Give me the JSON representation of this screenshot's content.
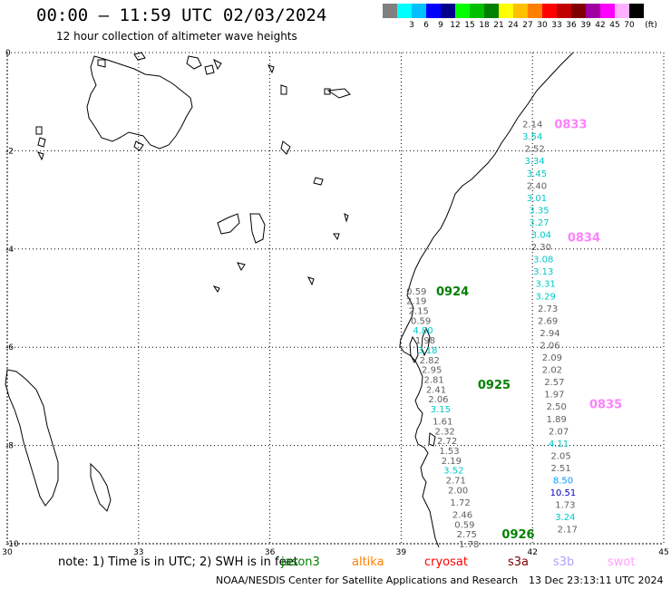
{
  "title": "00:00 – 11:59 UTC 02/03/2024",
  "subtitle": "12 hour collection of altimeter wave heights",
  "legend": {
    "unit": "(ft)",
    "swatches": [
      {
        "color": "#808080",
        "label": ""
      },
      {
        "color": "#00ffff",
        "label": "3"
      },
      {
        "color": "#00c0ff",
        "label": "6"
      },
      {
        "color": "#0000ff",
        "label": "9"
      },
      {
        "color": "#00008b",
        "label": "12"
      },
      {
        "color": "#00ff00",
        "label": "15"
      },
      {
        "color": "#00c000",
        "label": "18"
      },
      {
        "color": "#008000",
        "label": "21"
      },
      {
        "color": "#ffff00",
        "label": "24"
      },
      {
        "color": "#ffc000",
        "label": "27"
      },
      {
        "color": "#ff8000",
        "label": "30"
      },
      {
        "color": "#ff0000",
        "label": "33"
      },
      {
        "color": "#c00000",
        "label": "36"
      },
      {
        "color": "#800000",
        "label": "39"
      },
      {
        "color": "#a000a0",
        "label": "42"
      },
      {
        "color": "#ff00ff",
        "label": "45"
      },
      {
        "color": "#ffb0ff",
        "label": "70"
      },
      {
        "color": "#000000",
        "label": ""
      }
    ]
  },
  "axes": {
    "lon_ticks": [
      "30",
      "33",
      "36",
      "39",
      "42",
      "45"
    ],
    "lat_ticks": [
      "0",
      "-2",
      "-4",
      "-6",
      "-8",
      "-10"
    ],
    "lon_range": [
      30,
      45
    ],
    "lat_range": [
      0,
      -10
    ]
  },
  "tracks": [
    {
      "time_label": "0833",
      "label_color": "#ff80ff",
      "label_lon": 42.5,
      "label_lat": -1.45,
      "points": [
        {
          "lon": 42.0,
          "lat": -1.45,
          "value": "2.14",
          "color": "#606060"
        },
        {
          "lon": 42.0,
          "lat": -1.7,
          "value": "3.54",
          "color": "#00c8c8"
        },
        {
          "lon": 42.05,
          "lat": -1.95,
          "value": "2.52",
          "color": "#606060"
        },
        {
          "lon": 42.05,
          "lat": -2.2,
          "value": "3.34",
          "color": "#00c8c8"
        },
        {
          "lon": 42.1,
          "lat": -2.45,
          "value": "3.45",
          "color": "#00c8c8"
        },
        {
          "lon": 42.1,
          "lat": -2.7,
          "value": "2.40",
          "color": "#606060"
        },
        {
          "lon": 42.1,
          "lat": -2.95,
          "value": "3.01",
          "color": "#00c8c8"
        },
        {
          "lon": 42.15,
          "lat": -3.2,
          "value": "3.35",
          "color": "#00c8c8"
        },
        {
          "lon": 42.15,
          "lat": -3.45,
          "value": "3.27",
          "color": "#00c8c8"
        },
        {
          "lon": 42.2,
          "lat": -3.7,
          "value": "3.04",
          "color": "#00c8c8"
        },
        {
          "lon": 42.2,
          "lat": -3.95,
          "value": "2.30",
          "color": "#606060"
        }
      ]
    },
    {
      "time_label": "0834",
      "label_color": "#ff80ff",
      "label_lon": 42.8,
      "label_lat": -3.75,
      "points": [
        {
          "lon": 42.25,
          "lat": -4.2,
          "value": "3.08",
          "color": "#00c8c8"
        },
        {
          "lon": 42.25,
          "lat": -4.45,
          "value": "3.13",
          "color": "#00c8c8"
        },
        {
          "lon": 42.3,
          "lat": -4.7,
          "value": "3.31",
          "color": "#00c8c8"
        },
        {
          "lon": 42.3,
          "lat": -4.95,
          "value": "3.29",
          "color": "#00c8c8"
        },
        {
          "lon": 42.35,
          "lat": -5.2,
          "value": "2.73",
          "color": "#606060"
        },
        {
          "lon": 42.35,
          "lat": -5.45,
          "value": "2.69",
          "color": "#606060"
        },
        {
          "lon": 42.4,
          "lat": -5.7,
          "value": "2.94",
          "color": "#606060"
        },
        {
          "lon": 42.4,
          "lat": -5.95,
          "value": "2.06",
          "color": "#606060"
        },
        {
          "lon": 42.45,
          "lat": -6.2,
          "value": "2.09",
          "color": "#606060"
        },
        {
          "lon": 42.45,
          "lat": -6.45,
          "value": "2.02",
          "color": "#606060"
        },
        {
          "lon": 42.5,
          "lat": -6.7,
          "value": "2.57",
          "color": "#606060"
        },
        {
          "lon": 42.5,
          "lat": -6.95,
          "value": "1.97",
          "color": "#606060"
        }
      ]
    },
    {
      "time_label": "0835",
      "label_color": "#ff80ff",
      "label_lon": 43.3,
      "label_lat": -7.15,
      "points": [
        {
          "lon": 42.55,
          "lat": -7.2,
          "value": "2.50",
          "color": "#606060"
        },
        {
          "lon": 42.55,
          "lat": -7.45,
          "value": "1.89",
          "color": "#606060"
        },
        {
          "lon": 42.6,
          "lat": -7.7,
          "value": "2.07",
          "color": "#606060"
        },
        {
          "lon": 42.6,
          "lat": -7.95,
          "value": "4.11",
          "color": "#00c8c8"
        },
        {
          "lon": 42.65,
          "lat": -8.2,
          "value": "2.05",
          "color": "#606060"
        },
        {
          "lon": 42.65,
          "lat": -8.45,
          "value": "2.51",
          "color": "#606060"
        },
        {
          "lon": 42.7,
          "lat": -8.7,
          "value": "8.50",
          "color": "#00a0ff"
        },
        {
          "lon": 42.7,
          "lat": -8.95,
          "value": "10.51",
          "color": "#0000c0"
        },
        {
          "lon": 42.75,
          "lat": -9.2,
          "value": "1.73",
          "color": "#606060"
        },
        {
          "lon": 42.75,
          "lat": -9.45,
          "value": "3.24",
          "color": "#00c8c8"
        },
        {
          "lon": 42.8,
          "lat": -9.7,
          "value": "2.17",
          "color": "#606060"
        }
      ]
    },
    {
      "time_label": "0924",
      "label_color": "#008000",
      "label_lon": 39.8,
      "label_lat": -4.85,
      "points": [
        {
          "lon": 39.35,
          "lat": -4.85,
          "value": "0.59",
          "color": "#606060"
        },
        {
          "lon": 39.35,
          "lat": -5.05,
          "value": "2.19",
          "color": "#606060"
        },
        {
          "lon": 39.4,
          "lat": -5.25,
          "value": "2.15",
          "color": "#606060"
        },
        {
          "lon": 39.45,
          "lat": -5.45,
          "value": "0.59",
          "color": "#606060"
        },
        {
          "lon": 39.5,
          "lat": -5.65,
          "value": "4.80",
          "color": "#00c8c8"
        },
        {
          "lon": 39.55,
          "lat": -5.85,
          "value": "1.98",
          "color": "#606060"
        },
        {
          "lon": 39.6,
          "lat": -6.05,
          "value": "3.18",
          "color": "#00c8c8"
        },
        {
          "lon": 39.65,
          "lat": -6.25,
          "value": "2.82",
          "color": "#606060"
        },
        {
          "lon": 39.7,
          "lat": -6.45,
          "value": "2.95",
          "color": "#606060"
        },
        {
          "lon": 39.75,
          "lat": -6.65,
          "value": "2.81",
          "color": "#606060"
        },
        {
          "lon": 39.8,
          "lat": -6.85,
          "value": "2.41",
          "color": "#606060"
        },
        {
          "lon": 39.85,
          "lat": -7.05,
          "value": "2.06",
          "color": "#606060"
        },
        {
          "lon": 39.9,
          "lat": -7.25,
          "value": "3.15",
          "color": "#00c8c8"
        }
      ]
    },
    {
      "time_label": "0925",
      "label_color": "#008000",
      "label_lon": 40.75,
      "label_lat": -6.75,
      "points": [
        {
          "lon": 39.95,
          "lat": -7.5,
          "value": "1.61",
          "color": "#606060"
        },
        {
          "lon": 40.0,
          "lat": -7.7,
          "value": "2.32",
          "color": "#606060"
        },
        {
          "lon": 40.05,
          "lat": -7.9,
          "value": "2.72",
          "color": "#606060"
        },
        {
          "lon": 40.1,
          "lat": -8.1,
          "value": "1.53",
          "color": "#606060"
        },
        {
          "lon": 40.15,
          "lat": -8.3,
          "value": "2.19",
          "color": "#606060"
        },
        {
          "lon": 40.2,
          "lat": -8.5,
          "value": "3.52",
          "color": "#00c8c8"
        },
        {
          "lon": 40.25,
          "lat": -8.7,
          "value": "2.71",
          "color": "#606060"
        },
        {
          "lon": 40.3,
          "lat": -8.9,
          "value": "2.00",
          "color": "#606060"
        },
        {
          "lon": 40.35,
          "lat": -9.15,
          "value": "1.72",
          "color": "#606060"
        },
        {
          "lon": 40.4,
          "lat": -9.4,
          "value": "2.46",
          "color": "#606060"
        },
        {
          "lon": 40.45,
          "lat": -9.6,
          "value": "0.59",
          "color": "#606060"
        }
      ]
    },
    {
      "time_label": "0926",
      "label_color": "#008000",
      "label_lon": 41.3,
      "label_lat": -9.8,
      "points": [
        {
          "lon": 40.5,
          "lat": -9.8,
          "value": "2.75",
          "color": "#606060"
        },
        {
          "lon": 40.55,
          "lat": -10.0,
          "value": "1.78",
          "color": "#606060"
        }
      ]
    }
  ],
  "note": {
    "prefix": "note:  1) Time is in UTC;  2) SWH is in feet",
    "sats": [
      {
        "name": "jason3",
        "color": "#008000"
      },
      {
        "name": "altika",
        "color": "#ff8000"
      },
      {
        "name": "cryosat",
        "color": "#ff0000"
      },
      {
        "name": "s3a",
        "color": "#800000"
      },
      {
        "name": "s3b",
        "color": "#b0a0ff"
      },
      {
        "name": "swot",
        "color": "#ffa0ff"
      }
    ]
  },
  "credit": "NOAA/NESDIS Center for Satellite Applications and Research",
  "stamp": "13 Dec 23:13:11 UTC 2024",
  "colors": {
    "coast": "#000000",
    "grid": "#000000",
    "frame": "#000000"
  }
}
